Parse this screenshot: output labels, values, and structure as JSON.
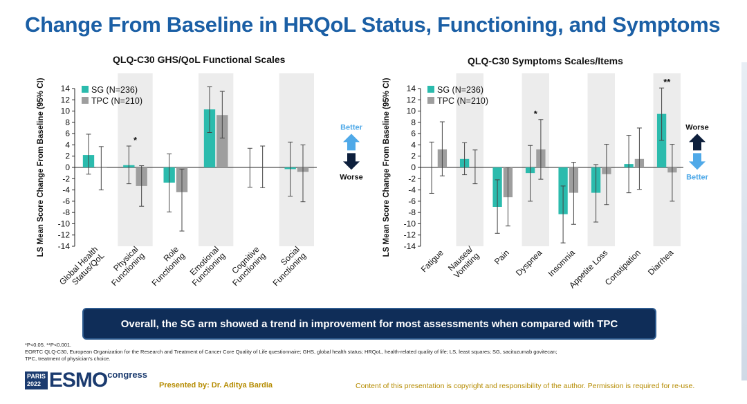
{
  "page": {
    "title": "Change From Baseline in HRQoL Status, Functioning, and Symptoms",
    "banner": "Overall, the SG arm showed a trend in improvement for most assessments when compared with TPC",
    "footnote_1": "*P<0.05. **P<0.001.",
    "footnote_2": "EORTC QLQ-C30, European Organization for the Research and Treatment of Cancer Core Quality of Life questionnaire; GHS, global health status; HRQoL, health-related quality of life; LS, least squares; SG, sacituzumab govitecan;",
    "footnote_3": "TPC, treatment of physician's choice.",
    "presenter": "Presented by: Dr. Aditya Bardia",
    "copyright": "Content of this presentation is copyright and responsibility of the author. Permission is required for re-use.",
    "logo": {
      "city": "PARIS",
      "year": "2022",
      "brand": "ESMO",
      "suffix": "congress"
    }
  },
  "colors": {
    "sg": "#2bbbad",
    "tpc": "#9e9e9e",
    "shade": "#ececec",
    "title": "#1b5fa5",
    "arrow_light": "#4fa9e8",
    "arrow_dark": "#0d1f3c"
  },
  "chart_data": [
    {
      "type": "bar",
      "title": "QLQ-C30 GHS/QoL Functional Scales",
      "ylabel": "LS Mean Score Change From Baseline (95% CI)",
      "ylim": [
        -14,
        14
      ],
      "yticks": [
        14,
        12,
        10,
        8,
        6,
        4,
        2,
        0,
        -2,
        -4,
        -6,
        -8,
        -10,
        -12,
        -14
      ],
      "categories": [
        "Global Health Status/QoL",
        "Physical Functioning",
        "Role Functioning",
        "Emotional Functioning",
        "Cognitive Functioning",
        "Social Functioning"
      ],
      "category_lines": [
        [
          "Global Health",
          "Status/QoL"
        ],
        [
          "Physical",
          "Functioning"
        ],
        [
          "Role",
          "Functioning"
        ],
        [
          "Emotional",
          "Functioning"
        ],
        [
          "Cognitive",
          "Functioning"
        ],
        [
          "Social",
          "Functioning"
        ]
      ],
      "shaded": [
        false,
        true,
        false,
        true,
        false,
        true
      ],
      "significance": [
        "",
        "*",
        "",
        "",
        "",
        ""
      ],
      "series": [
        {
          "name": "SG (N=236)",
          "values": [
            2.2,
            0.4,
            -2.7,
            10.3,
            0.0,
            -0.3
          ],
          "ci_low": [
            -1.2,
            -2.9,
            -7.9,
            6.2,
            -3.5,
            -5.1
          ],
          "ci_high": [
            5.9,
            3.8,
            2.4,
            14.3,
            3.4,
            4.5
          ]
        },
        {
          "name": "TPC (N=210)",
          "values": [
            -0.1,
            -3.3,
            -4.4,
            9.3,
            0.0,
            -0.8
          ],
          "ci_low": [
            -4.0,
            -6.9,
            -11.3,
            5.2,
            -3.6,
            -6.1
          ],
          "ci_high": [
            3.7,
            0.3,
            -0.3,
            13.5,
            3.8,
            4.0
          ]
        }
      ],
      "legend": {
        "sg": "SG (N=236)",
        "tpc": "TPC (N=210)"
      },
      "arrows": {
        "up_label": "Better",
        "down_label": "Worse"
      }
    },
    {
      "type": "bar",
      "title": "QLQ-C30 Symptoms Scales/Items",
      "ylabel": "LS Mean Score Change From Baseline (95% CI)",
      "ylim": [
        -14,
        14
      ],
      "yticks": [
        14,
        12,
        10,
        8,
        6,
        4,
        2,
        0,
        -2,
        -4,
        -6,
        -8,
        -10,
        -12,
        -14
      ],
      "categories": [
        "Fatigue",
        "Nausea/Vomiting",
        "Pain",
        "Dyspnea",
        "Insomnia",
        "Appetite Loss",
        "Constipation",
        "Diarrhea"
      ],
      "category_lines": [
        [
          "Fatigue"
        ],
        [
          "Nausea/",
          "Vomiting"
        ],
        [
          "Pain"
        ],
        [
          "Dyspnea"
        ],
        [
          "Insomnia"
        ],
        [
          "Appetite Loss"
        ],
        [
          "Constipation"
        ],
        [
          "Diarrhea"
        ]
      ],
      "shaded": [
        false,
        true,
        false,
        true,
        false,
        true,
        false,
        true
      ],
      "significance": [
        "",
        "",
        "",
        "*",
        "",
        "",
        "",
        "**"
      ],
      "series": [
        {
          "name": "SG (N=236)",
          "values": [
            0.0,
            1.5,
            -7.0,
            -1.0,
            -8.3,
            -4.5,
            0.6,
            9.5
          ],
          "ci_low": [
            -4.6,
            -1.3,
            -11.7,
            -6.0,
            -13.4,
            -9.7,
            -4.5,
            4.8
          ],
          "ci_high": [
            4.5,
            4.4,
            -2.2,
            3.9,
            -3.3,
            0.5,
            5.7,
            14.1
          ]
        },
        {
          "name": "TPC (N=210)",
          "values": [
            3.2,
            0.0,
            -5.3,
            3.2,
            -4.5,
            -1.2,
            1.5,
            -0.9
          ],
          "ci_low": [
            -1.5,
            -2.9,
            -10.4,
            -2.1,
            -10.1,
            -6.6,
            -3.9,
            -6.0
          ],
          "ci_high": [
            8.1,
            3.1,
            0.0,
            8.5,
            0.9,
            4.1,
            7.0,
            4.1
          ]
        }
      ],
      "legend": {
        "sg": "SG (N=236)",
        "tpc": "TPC (N=210)"
      },
      "arrows": {
        "up_label": "Worse",
        "down_label": "Better"
      }
    }
  ]
}
